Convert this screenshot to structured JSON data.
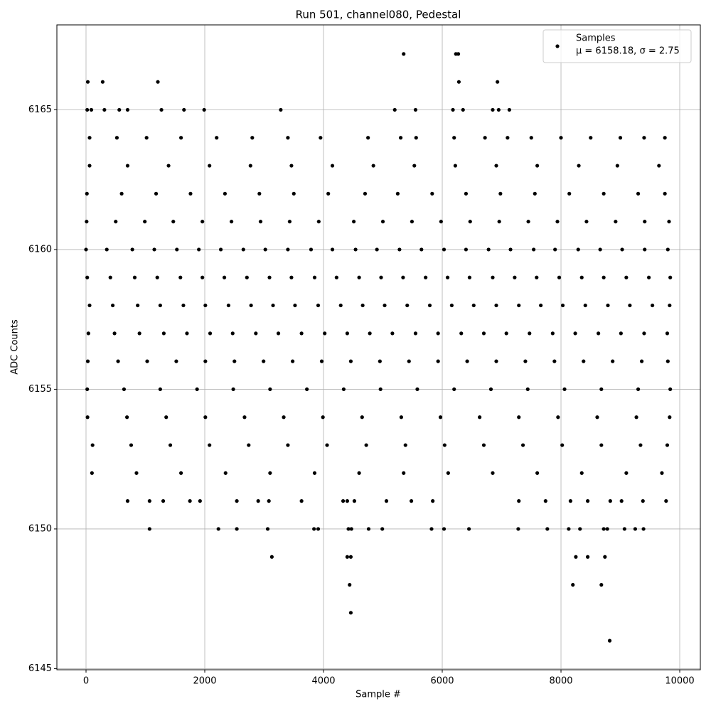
{
  "chart_data": {
    "type": "scatter",
    "title": "Run 501, channel080, Pedestal",
    "x_label": "Sample #",
    "y_label": "ADC Counts",
    "xlim": [
      -491,
      10347
    ],
    "ylim": [
      6144.96,
      6168.04
    ],
    "xticks": [
      0,
      2000,
      4000,
      6000,
      8000,
      10000
    ],
    "yticks": [
      6145,
      6150,
      6155,
      6160,
      6165
    ],
    "grid": true,
    "legend": "upper right",
    "series": [
      {
        "name": "Samples",
        "stats_label": "μ = 6158.18, σ = 2.75",
        "color": "#000000",
        "x": [
          0,
          350,
          780,
          1150,
          1530,
          1900,
          2270,
          2650,
          3020,
          3400,
          3790,
          4150,
          4540,
          4900,
          5280,
          5650,
          6030,
          6400,
          6780,
          7150,
          7540,
          7900,
          8290,
          8660,
          9030,
          9410,
          9800,
          20,
          410,
          820,
          1200,
          1590,
          1960,
          2330,
          2710,
          3090,
          3460,
          3850,
          4220,
          4600,
          4970,
          5340,
          5720,
          6090,
          6460,
          6850,
          7220,
          7590,
          7970,
          8350,
          8720,
          9100,
          9480,
          9840,
          60,
          450,
          870,
          1250,
          1640,
          2010,
          2400,
          2780,
          3150,
          3520,
          3910,
          4290,
          4660,
          5030,
          5410,
          5790,
          6160,
          6530,
          6910,
          7290,
          7660,
          8030,
          8410,
          8790,
          9160,
          9540,
          9830,
          40,
          480,
          900,
          1310,
          1700,
          2090,
          2470,
          2860,
          3240,
          3630,
          4020,
          4400,
          4780,
          5160,
          5550,
          5930,
          6320,
          6700,
          7080,
          7470,
          7860,
          8240,
          8630,
          9010,
          9400,
          9790,
          10,
          500,
          990,
          1470,
          1960,
          2450,
          2940,
          3430,
          3920,
          4510,
          5000,
          5490,
          5980,
          6470,
          6960,
          7450,
          7940,
          8430,
          8920,
          9410,
          9820,
          30,
          540,
          1030,
          1520,
          2010,
          2500,
          2990,
          3480,
          3970,
          4460,
          4950,
          5440,
          5930,
          6420,
          6910,
          7400,
          7890,
          8380,
          8870,
          9360,
          9800,
          15,
          600,
          1180,
          1760,
          2340,
          2920,
          3500,
          4080,
          4700,
          5250,
          5830,
          6400,
          6980,
          7560,
          8140,
          8720,
          9300,
          9750,
          20,
          640,
          1250,
          1870,
          2480,
          3100,
          3720,
          4340,
          4960,
          5580,
          6200,
          6820,
          7440,
          8060,
          8680,
          9300,
          9840,
          25,
          690,
          1350,
          2010,
          2670,
          3330,
          3990,
          4650,
          5310,
          5970,
          6630,
          7290,
          7950,
          8610,
          9270,
          9830,
          110,
          760,
          1420,
          2080,
          2740,
          3400,
          4060,
          4720,
          5380,
          6040,
          6700,
          7360,
          8020,
          8680,
          9340,
          9790,
          60,
          700,
          1390,
          2080,
          2770,
          3460,
          4150,
          4840,
          5530,
          6220,
          6910,
          7600,
          8300,
          8950,
          9650,
          100,
          850,
          1600,
          2350,
          3100,
          3850,
          4600,
          5350,
          6100,
          6850,
          7600,
          8350,
          9100,
          9700,
          60,
          520,
          1020,
          1600,
          2200,
          2800,
          3400,
          3950,
          4750,
          5300,
          5560,
          6200,
          6720,
          7100,
          7500,
          8000,
          8500,
          9000,
          9400,
          9750,
          700,
          1070,
          1300,
          1750,
          1920,
          2540,
          2900,
          3080,
          3630,
          4330,
          4400,
          4520,
          5060,
          5480,
          5840,
          7290,
          7740,
          8160,
          8450,
          8830,
          9020,
          9380,
          9770,
          20,
          90,
          310,
          560,
          700,
          1270,
          1650,
          1990,
          3280,
          5200,
          5550,
          6180,
          6350,
          6850,
          6950,
          7130,
          1070,
          2230,
          2540,
          3060,
          3840,
          3910,
          4420,
          4470,
          4760,
          4990,
          5820,
          6030,
          6450,
          7280,
          7770,
          8130,
          8320,
          8720,
          8780,
          9070,
          9250,
          9390,
          30,
          280,
          1210,
          6280,
          6930,
          5350,
          6230,
          6270,
          3130,
          4400,
          4460,
          8250,
          8450,
          8740,
          4440,
          8200,
          8680,
          4460,
          8820
        ],
        "values": [
          6160,
          6160,
          6160,
          6160,
          6160,
          6160,
          6160,
          6160,
          6160,
          6160,
          6160,
          6160,
          6160,
          6160,
          6160,
          6160,
          6160,
          6160,
          6160,
          6160,
          6160,
          6160,
          6160,
          6160,
          6160,
          6160,
          6160,
          6159,
          6159,
          6159,
          6159,
          6159,
          6159,
          6159,
          6159,
          6159,
          6159,
          6159,
          6159,
          6159,
          6159,
          6159,
          6159,
          6159,
          6159,
          6159,
          6159,
          6159,
          6159,
          6159,
          6159,
          6159,
          6159,
          6159,
          6158,
          6158,
          6158,
          6158,
          6158,
          6158,
          6158,
          6158,
          6158,
          6158,
          6158,
          6158,
          6158,
          6158,
          6158,
          6158,
          6158,
          6158,
          6158,
          6158,
          6158,
          6158,
          6158,
          6158,
          6158,
          6158,
          6158,
          6157,
          6157,
          6157,
          6157,
          6157,
          6157,
          6157,
          6157,
          6157,
          6157,
          6157,
          6157,
          6157,
          6157,
          6157,
          6157,
          6157,
          6157,
          6157,
          6157,
          6157,
          6157,
          6157,
          6157,
          6157,
          6157,
          6161,
          6161,
          6161,
          6161,
          6161,
          6161,
          6161,
          6161,
          6161,
          6161,
          6161,
          6161,
          6161,
          6161,
          6161,
          6161,
          6161,
          6161,
          6161,
          6161,
          6161,
          6156,
          6156,
          6156,
          6156,
          6156,
          6156,
          6156,
          6156,
          6156,
          6156,
          6156,
          6156,
          6156,
          6156,
          6156,
          6156,
          6156,
          6156,
          6156,
          6156,
          6156,
          6162,
          6162,
          6162,
          6162,
          6162,
          6162,
          6162,
          6162,
          6162,
          6162,
          6162,
          6162,
          6162,
          6162,
          6162,
          6162,
          6162,
          6162,
          6155,
          6155,
          6155,
          6155,
          6155,
          6155,
          6155,
          6155,
          6155,
          6155,
          6155,
          6155,
          6155,
          6155,
          6155,
          6155,
          6155,
          6154,
          6154,
          6154,
          6154,
          6154,
          6154,
          6154,
          6154,
          6154,
          6154,
          6154,
          6154,
          6154,
          6154,
          6154,
          6154,
          6153,
          6153,
          6153,
          6153,
          6153,
          6153,
          6153,
          6153,
          6153,
          6153,
          6153,
          6153,
          6153,
          6153,
          6153,
          6153,
          6163,
          6163,
          6163,
          6163,
          6163,
          6163,
          6163,
          6163,
          6163,
          6163,
          6163,
          6163,
          6163,
          6163,
          6163,
          6152,
          6152,
          6152,
          6152,
          6152,
          6152,
          6152,
          6152,
          6152,
          6152,
          6152,
          6152,
          6152,
          6152,
          6164,
          6164,
          6164,
          6164,
          6164,
          6164,
          6164,
          6164,
          6164,
          6164,
          6164,
          6164,
          6164,
          6164,
          6164,
          6164,
          6164,
          6164,
          6164,
          6164,
          6151,
          6151,
          6151,
          6151,
          6151,
          6151,
          6151,
          6151,
          6151,
          6151,
          6151,
          6151,
          6151,
          6151,
          6151,
          6151,
          6151,
          6151,
          6151,
          6151,
          6151,
          6151,
          6151,
          6165,
          6165,
          6165,
          6165,
          6165,
          6165,
          6165,
          6165,
          6165,
          6165,
          6165,
          6165,
          6165,
          6165,
          6165,
          6165,
          6150,
          6150,
          6150,
          6150,
          6150,
          6150,
          6150,
          6150,
          6150,
          6150,
          6150,
          6150,
          6150,
          6150,
          6150,
          6150,
          6150,
          6150,
          6150,
          6150,
          6150,
          6150,
          6166,
          6166,
          6166,
          6166,
          6166,
          6167,
          6167,
          6167,
          6149,
          6149,
          6149,
          6149,
          6149,
          6149,
          6148,
          6148,
          6148,
          6147,
          6146
        ]
      }
    ]
  }
}
